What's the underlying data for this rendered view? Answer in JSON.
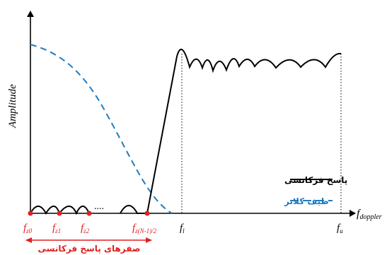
{
  "axes": {
    "y_label": "Amplitude",
    "x_label_main": "f",
    "x_label_sub": "doppler"
  },
  "legend": {
    "frequency_response": "پاسخ فرکانسی",
    "clutter_spectrum": "طیف کلاتر"
  },
  "zero_labels": [
    {
      "main": "f",
      "sub": "z0"
    },
    {
      "main": "f",
      "sub": "z1"
    },
    {
      "main": "f",
      "sub": "z2"
    },
    {
      "main": "f",
      "sub": "z(N-1)/2"
    }
  ],
  "ellipsis": "....",
  "band_labels": [
    {
      "main": "f",
      "sub": "l"
    },
    {
      "main": "f",
      "sub": "u"
    }
  ],
  "zeros_caption": "صفرهای پاسخ فرکانسی",
  "colors": {
    "response": "#000000",
    "clutter": "#1f7bbf",
    "zeros": "#e02020",
    "axis": "#000000"
  }
}
